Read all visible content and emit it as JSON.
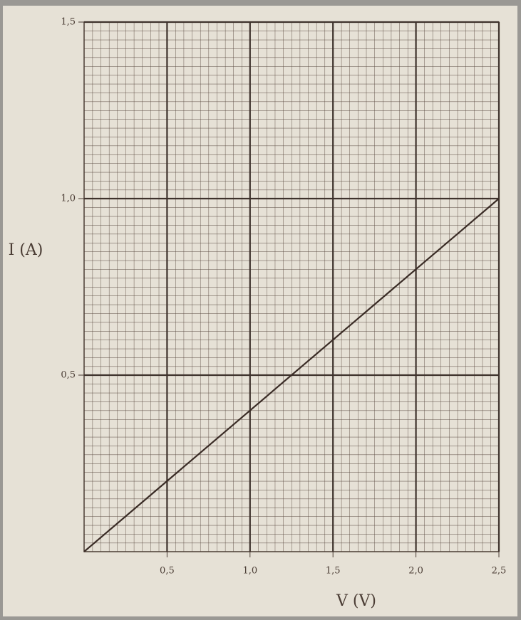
{
  "chart_data": {
    "type": "line",
    "x_label": "V (V)",
    "y_label": "I (A)",
    "x": [
      0,
      2.5
    ],
    "series": [
      {
        "name": "I",
        "color": "#3a2c26",
        "values": [
          0,
          1.0
        ]
      }
    ],
    "xlim": [
      0,
      2.5
    ],
    "ylim": [
      0,
      1.5
    ],
    "xticks": [
      {
        "value": 0.5,
        "label": "0,5"
      },
      {
        "value": 1.0,
        "label": "1,0"
      },
      {
        "value": 1.5,
        "label": "1,5"
      },
      {
        "value": 2.0,
        "label": "2,0"
      },
      {
        "value": 2.5,
        "label": "2,5"
      }
    ],
    "yticks": [
      {
        "value": 0.5,
        "label": "0,5"
      },
      {
        "value": 1.0,
        "label": "1,0"
      },
      {
        "value": 1.5,
        "label": "1,5"
      }
    ],
    "grid": true
  }
}
